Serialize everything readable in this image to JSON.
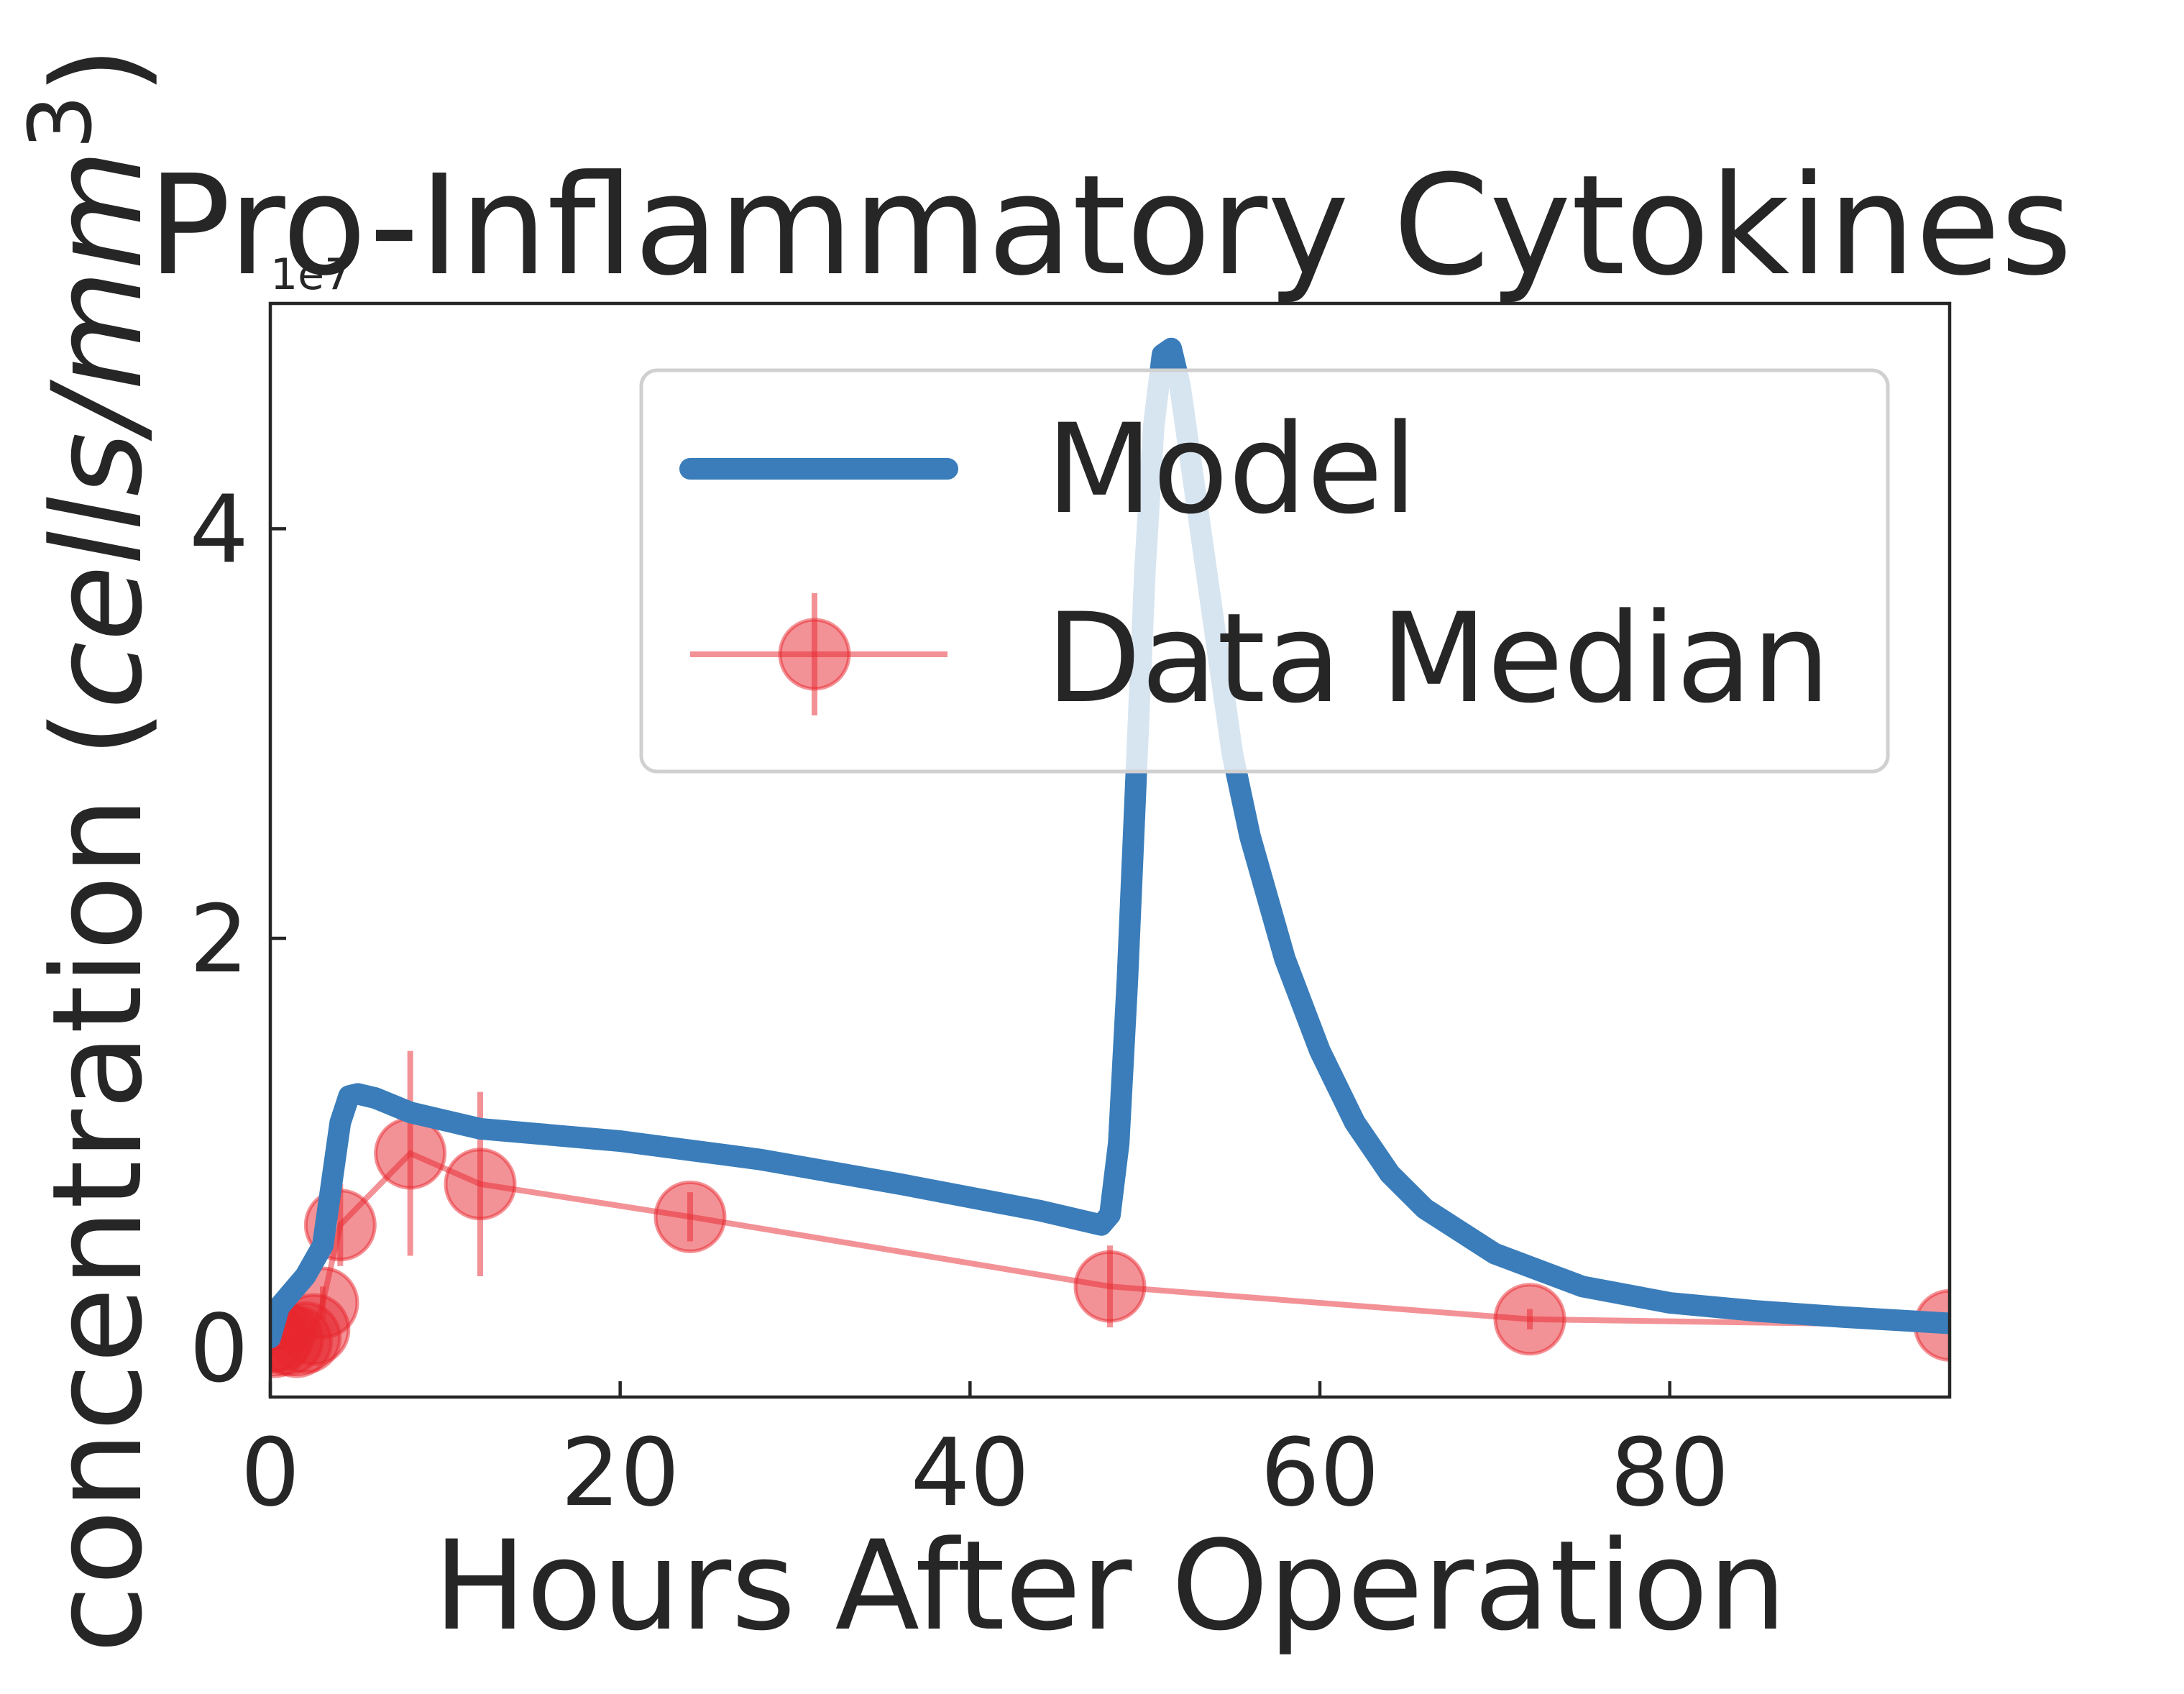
{
  "chart_data": {
    "type": "line",
    "title": "Pro-Inflammatory Cytokines",
    "xlabel": "Hours After Operation",
    "ylabel": "concentration (cells/mm^3)",
    "ylabel_parts": {
      "main": "concentration (",
      "italic": "cells/mm",
      "sup": "3",
      "close": ")"
    },
    "offset_label": "1e7",
    "xlim": [
      0,
      96
    ],
    "ylim": [
      -2400000,
      51000000
    ],
    "x_ticks": [
      0,
      20,
      40,
      60,
      80
    ],
    "x_tick_labels": [
      "0",
      "20",
      "40",
      "60",
      "80"
    ],
    "y_ticks": [
      0,
      20000000,
      40000000
    ],
    "y_tick_labels": [
      "0",
      "2",
      "4"
    ],
    "grid": false,
    "legend_position": "upper-right",
    "series": [
      {
        "name": "Model",
        "kind": "line",
        "color": "#3a7dba",
        "x": [
          0,
          0.5,
          1,
          2,
          3,
          3.5,
          4,
          4.5,
          5,
          6,
          8,
          12,
          20,
          28,
          36,
          44,
          47.5,
          48,
          48.5,
          49,
          49.5,
          50,
          50.5,
          51,
          51.5,
          52,
          53,
          54,
          55,
          56,
          58,
          60,
          62,
          64,
          66,
          70,
          75,
          80,
          85,
          90,
          96
        ],
        "y": [
          500000,
          2000000,
          2500000,
          3500000,
          5000000,
          8000000,
          11000000,
          12300000,
          12400000,
          12200000,
          11500000,
          10700000,
          10100000,
          9200000,
          8000000,
          6700000,
          6000000,
          6500000,
          10000000,
          18000000,
          28000000,
          38000000,
          45000000,
          48500000,
          48800000,
          47000000,
          41000000,
          35000000,
          29000000,
          25000000,
          19000000,
          14500000,
          11000000,
          8500000,
          6800000,
          4600000,
          3000000,
          2200000,
          1800000,
          1500000,
          1200000
        ]
      },
      {
        "name": "Data Median",
        "kind": "errorbar",
        "color": "#e8262d",
        "x": [
          0,
          0.25,
          0.5,
          1,
          1.5,
          2,
          2.5,
          3,
          4,
          8,
          12,
          24,
          48,
          72,
          96
        ],
        "y": [
          500000,
          300000,
          600000,
          400000,
          300000,
          500000,
          900000,
          2200000,
          6000000,
          9500000,
          8000000,
          6400000,
          3000000,
          1400000,
          1100000
        ],
        "yerr": [
          200000,
          200000,
          300000,
          300000,
          300000,
          400000,
          500000,
          800000,
          2000000,
          5000000,
          4500000,
          1200000,
          2000000,
          500000,
          300000
        ]
      }
    ]
  }
}
